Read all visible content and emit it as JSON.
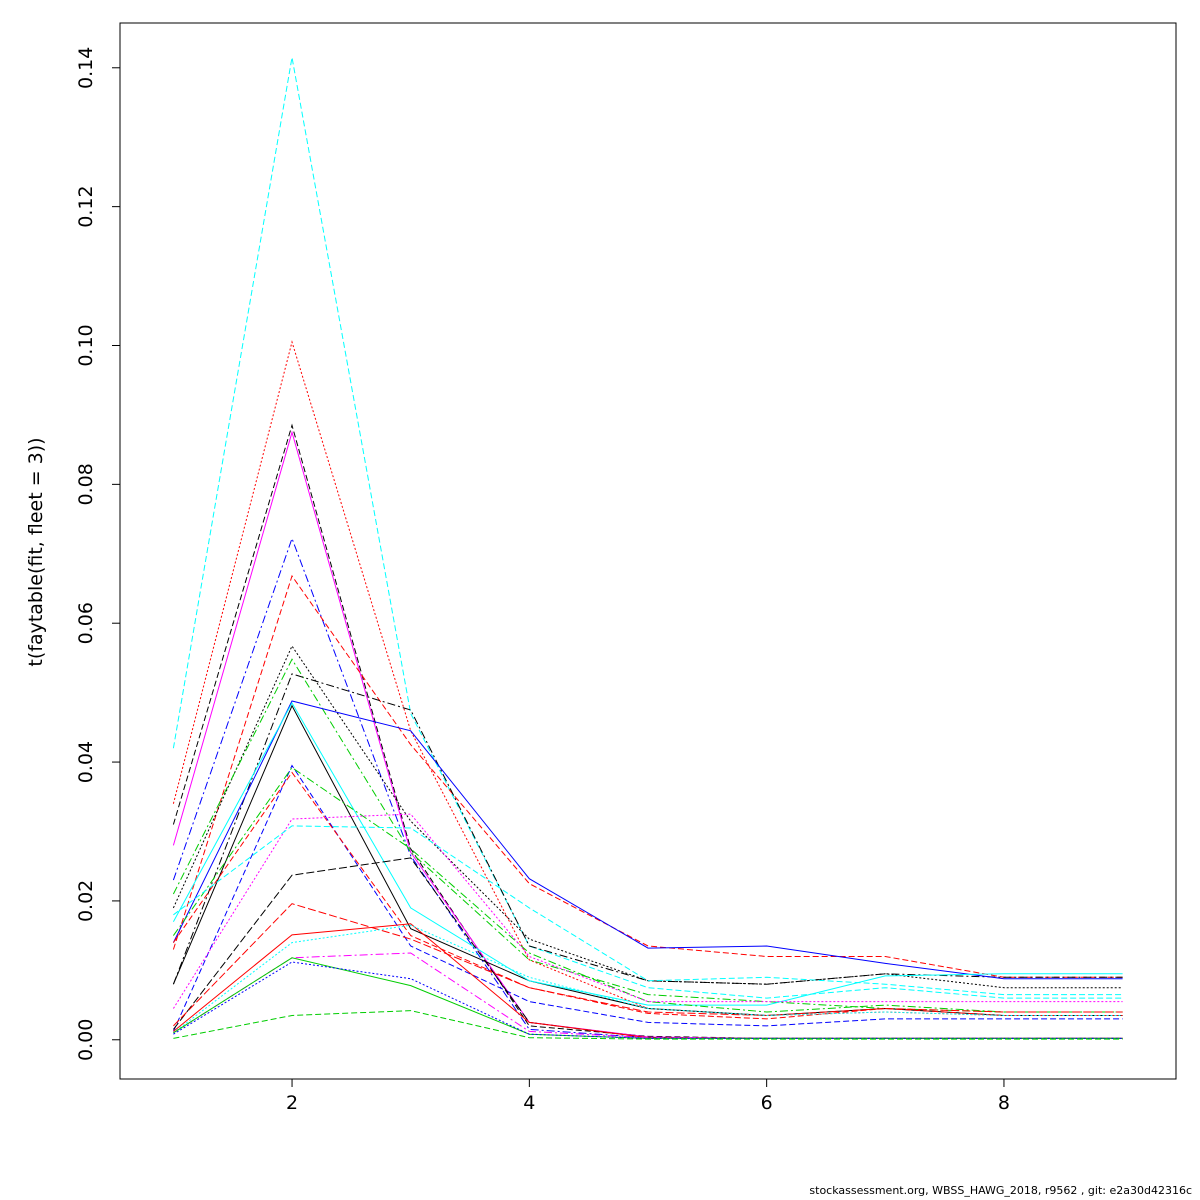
{
  "chart_data": {
    "type": "line",
    "title": "",
    "xlabel": "",
    "ylabel": "t(faytable(fit, fleet = 3))",
    "xlim": [
      0.55,
      9.45
    ],
    "ylim": [
      -0.00565,
      0.14645
    ],
    "x": [
      1,
      2,
      3,
      4,
      5,
      6,
      7,
      8,
      9
    ],
    "x_ticks": [
      2,
      4,
      6,
      8
    ],
    "x_tick_labels": [
      "2",
      "4",
      "6",
      "8"
    ],
    "y_ticks": [
      0,
      0.02,
      0.04,
      0.06,
      0.08,
      0.1,
      0.12,
      0.14
    ],
    "y_tick_labels": [
      "0.00",
      "0.02",
      "0.04",
      "0.06",
      "0.08",
      "0.10",
      "0.12",
      "0.14"
    ],
    "grid": false,
    "legend": "none",
    "series": [
      {
        "color": "#00ffff",
        "dash": "6,3",
        "values": [
          0.042,
          0.1415,
          0.047,
          0.0135,
          0.0075,
          0.006,
          0.0075,
          0.006,
          0.006
        ]
      },
      {
        "color": "#ff0000",
        "dash": "2,2",
        "values": [
          0.034,
          0.1005,
          0.0445,
          0.0115,
          0.0045,
          0.0035,
          0.004,
          0.0035,
          0.0035
        ]
      },
      {
        "color": "#000000",
        "dash": "6,3",
        "values": [
          0.031,
          0.0885,
          0.0275,
          0.002,
          0.0005,
          0.0002,
          0.0002,
          0.0002,
          0.0002
        ]
      },
      {
        "color": "#ff00ff",
        "dash": "",
        "values": [
          0.028,
          0.0875,
          0.027,
          0.0025,
          0.0004,
          0.0002,
          0.0002,
          0.0002,
          0.0002
        ]
      },
      {
        "color": "#0000ff",
        "dash": "8,3,2,3",
        "values": [
          0.023,
          0.0722,
          0.0265,
          0.0015,
          0.0003,
          0.0002,
          0.0002,
          0.0002,
          0.0002
        ]
      },
      {
        "color": "#ff0000",
        "dash": "6,3",
        "values": [
          0.013,
          0.0668,
          0.0425,
          0.0225,
          0.0135,
          0.012,
          0.012,
          0.009,
          0.009
        ]
      },
      {
        "color": "#000000",
        "dash": "2,2",
        "values": [
          0.019,
          0.0567,
          0.0315,
          0.0145,
          0.0085,
          0.008,
          0.0095,
          0.0075,
          0.0075
        ]
      },
      {
        "color": "#00cd00",
        "dash": "8,3,2,3",
        "values": [
          0.021,
          0.0548,
          0.027,
          0.0115,
          0.0065,
          0.0055,
          0.0045,
          0.004,
          0.004
        ]
      },
      {
        "color": "#000000",
        "dash": "8,3,2,3",
        "values": [
          0.008,
          0.0527,
          0.0475,
          0.0135,
          0.0085,
          0.008,
          0.0095,
          0.009,
          0.009
        ]
      },
      {
        "color": "#0000ff",
        "dash": "",
        "values": [
          0.014,
          0.0488,
          0.0445,
          0.0232,
          0.0132,
          0.0135,
          0.011,
          0.0088,
          0.0088
        ]
      },
      {
        "color": "#000000",
        "dash": "",
        "values": [
          0.008,
          0.0481,
          0.016,
          0.0085,
          0.0045,
          0.0035,
          0.0045,
          0.0035,
          0.0035
        ]
      },
      {
        "color": "#00ffff",
        "dash": "",
        "values": [
          0.017,
          0.0485,
          0.019,
          0.0085,
          0.005,
          0.005,
          0.0092,
          0.0095,
          0.0095
        ]
      },
      {
        "color": "#0000ff",
        "dash": "6,3",
        "values": [
          0.0012,
          0.0395,
          0.0135,
          0.0055,
          0.0025,
          0.002,
          0.003,
          0.003,
          0.003
        ]
      },
      {
        "color": "#00cd00",
        "dash": "8,3,2,3",
        "values": [
          0.015,
          0.0392,
          0.0275,
          0.0125,
          0.0055,
          0.004,
          0.005,
          0.004,
          0.004
        ]
      },
      {
        "color": "#ff0000",
        "dash": "6,3",
        "values": [
          0.014,
          0.0385,
          0.015,
          0.0075,
          0.0038,
          0.003,
          0.0045,
          0.0035,
          0.0035
        ]
      },
      {
        "color": "#ff00ff",
        "dash": "2,2",
        "values": [
          0.0045,
          0.0318,
          0.0325,
          0.012,
          0.0055,
          0.0055,
          0.0055,
          0.0055,
          0.0055
        ]
      },
      {
        "color": "#00ffff",
        "dash": "6,3",
        "values": [
          0.018,
          0.0308,
          0.0305,
          0.019,
          0.0085,
          0.009,
          0.008,
          0.0065,
          0.0065
        ]
      },
      {
        "color": "#000000",
        "dash": "8,3",
        "values": [
          0.0015,
          0.0237,
          0.0262,
          0.0025,
          0.0003,
          0.0002,
          0.0002,
          0.0002,
          0.0002
        ]
      },
      {
        "color": "#ff0000",
        "dash": "8,3",
        "values": [
          0.002,
          0.0196,
          0.0145,
          0.0075,
          0.004,
          0.0035,
          0.0045,
          0.004,
          0.004
        ]
      },
      {
        "color": "#ff0000",
        "dash": "",
        "values": [
          0.0012,
          0.0151,
          0.0167,
          0.0025,
          0.0003,
          0.0002,
          0.0002,
          0.0002,
          0.0002
        ]
      },
      {
        "color": "#00ffff",
        "dash": "2,2",
        "values": [
          0.001,
          0.014,
          0.0165,
          0.009,
          0.0045,
          0.0035,
          0.004,
          0.0035,
          0.0035
        ]
      },
      {
        "color": "#ff00ff",
        "dash": "8,3,2,3",
        "values": [
          0.001,
          0.0118,
          0.0125,
          0.0012,
          0.0003,
          0.0002,
          0.0002,
          0.0002,
          0.0002
        ]
      },
      {
        "color": "#00cd00",
        "dash": "",
        "values": [
          0.001,
          0.0118,
          0.0078,
          0.0008,
          0.0002,
          0.0002,
          0.0002,
          0.0002,
          0.0002
        ]
      },
      {
        "color": "#0000ff",
        "dash": "2,2",
        "values": [
          0.0008,
          0.0112,
          0.0088,
          0.0008,
          0.0002,
          0.0002,
          0.0002,
          0.0002,
          0.0002
        ]
      },
      {
        "color": "#00cd00",
        "dash": "6,3",
        "values": [
          0.0002,
          0.0035,
          0.0042,
          0.0003,
          0.0001,
          0.0001,
          0.0001,
          0.0001,
          0.0001
        ]
      }
    ]
  },
  "footer": "stockassessment.org, WBSS_HAWG_2018, r9562 , git: e2a30d42316c"
}
